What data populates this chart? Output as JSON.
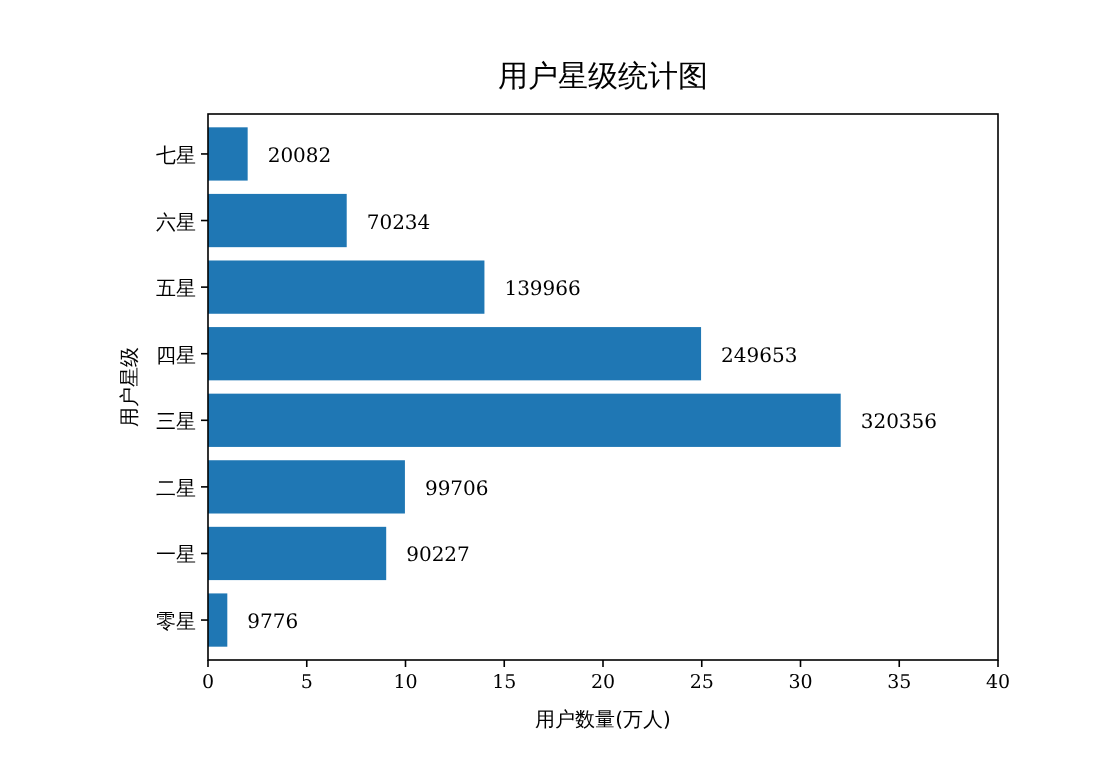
{
  "chart_data": {
    "type": "bar",
    "orientation": "horizontal",
    "title": "用户星级统计图",
    "xlabel": "用户数量(万人)",
    "ylabel": "用户星级",
    "categories": [
      "七星",
      "六星",
      "五星",
      "四星",
      "三星",
      "二星",
      "一星",
      "零星"
    ],
    "values": [
      2.0082,
      7.0234,
      13.9966,
      24.9653,
      32.0356,
      9.9706,
      9.0227,
      0.9776
    ],
    "annotations": [
      {
        "text": "20082",
        "x": 2.0082,
        "y": "七星"
      },
      {
        "text": "70234",
        "x": 7.0234,
        "y": "六星"
      },
      {
        "text": "139966",
        "x": 13.9966,
        "y": "五星"
      },
      {
        "text": "249653",
        "x": 24.9653,
        "y": "四星"
      },
      {
        "text": "320356",
        "x": 32.0356,
        "y": "三星"
      },
      {
        "text": "99706",
        "x": 9.9706,
        "y": "二星"
      },
      {
        "text": "90227",
        "x": 9.0227,
        "y": "一星"
      },
      {
        "text": "9776",
        "x": 0.9776,
        "y": "零星"
      }
    ],
    "color": "#1f77b4",
    "xlim": [
      0,
      40
    ],
    "xticks": [
      0,
      5,
      10,
      15,
      20,
      25,
      30,
      35,
      40
    ]
  }
}
